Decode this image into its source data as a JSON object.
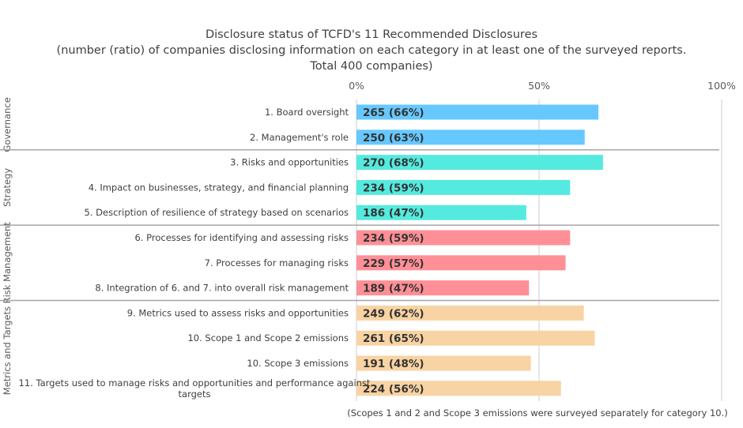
{
  "chart_data": {
    "type": "bar",
    "orientation": "horizontal",
    "title": [
      "Disclosure status of TCFD's 11 Recommended Disclosures",
      "(number (ratio) of companies disclosing information on each category in at least one of the surveyed reports.",
      "Total 400 companies)"
    ],
    "total": 400,
    "xlim": [
      0,
      100
    ],
    "x_ticks": [
      "0%",
      "50%",
      "100%"
    ],
    "grid": true,
    "note": "(Scopes 1 and 2 and Scope 3 emissions were surveyed separately for category 10.)",
    "groups": [
      {
        "name": "Governance",
        "color": "#66C8FF",
        "items": [
          {
            "label": [
              "1. Board oversight"
            ],
            "count": 265,
            "value_label": "265 (66%)"
          },
          {
            "label": [
              "2. Management's role"
            ],
            "count": 250,
            "value_label": "250 (63%)"
          }
        ]
      },
      {
        "name": "Strategy",
        "color": "#55EADF",
        "items": [
          {
            "label": [
              "3. Risks and opportunities"
            ],
            "count": 270,
            "value_label": "270 (68%)"
          },
          {
            "label": [
              "4. Impact on businesses, strategy, and financial planning"
            ],
            "count": 234,
            "value_label": "234 (59%)"
          },
          {
            "label": [
              "5. Description of resilience of strategy based on scenarios"
            ],
            "count": 186,
            "value_label": "186 (47%)"
          }
        ]
      },
      {
        "name": "Risk Management",
        "color": "#FF8F96",
        "items": [
          {
            "label": [
              "6. Processes for identifying and assessing risks"
            ],
            "count": 234,
            "value_label": "234 (59%)"
          },
          {
            "label": [
              "7. Processes for managing risks"
            ],
            "count": 229,
            "value_label": "229 (57%)"
          },
          {
            "label": [
              "8. Integration of 6. and 7. into overall risk management"
            ],
            "count": 189,
            "value_label": "189 (47%)"
          }
        ]
      },
      {
        "name": "Metrics and Targets",
        "color": "#F8D3A3",
        "items": [
          {
            "label": [
              "9. Metrics used to assess risks and opportunities"
            ],
            "count": 249,
            "value_label": "249 (62%)"
          },
          {
            "label": [
              "10. Scope 1 and Scope 2 emissions"
            ],
            "count": 261,
            "value_label": "261 (65%)"
          },
          {
            "label": [
              "10. Scope 3 emissions"
            ],
            "count": 191,
            "value_label": "191 (48%)"
          },
          {
            "label": [
              "11. Targets used to manage risks and opportunities and performance against",
              "targets"
            ],
            "count": 224,
            "value_label": "224 (56%)"
          }
        ]
      }
    ]
  }
}
